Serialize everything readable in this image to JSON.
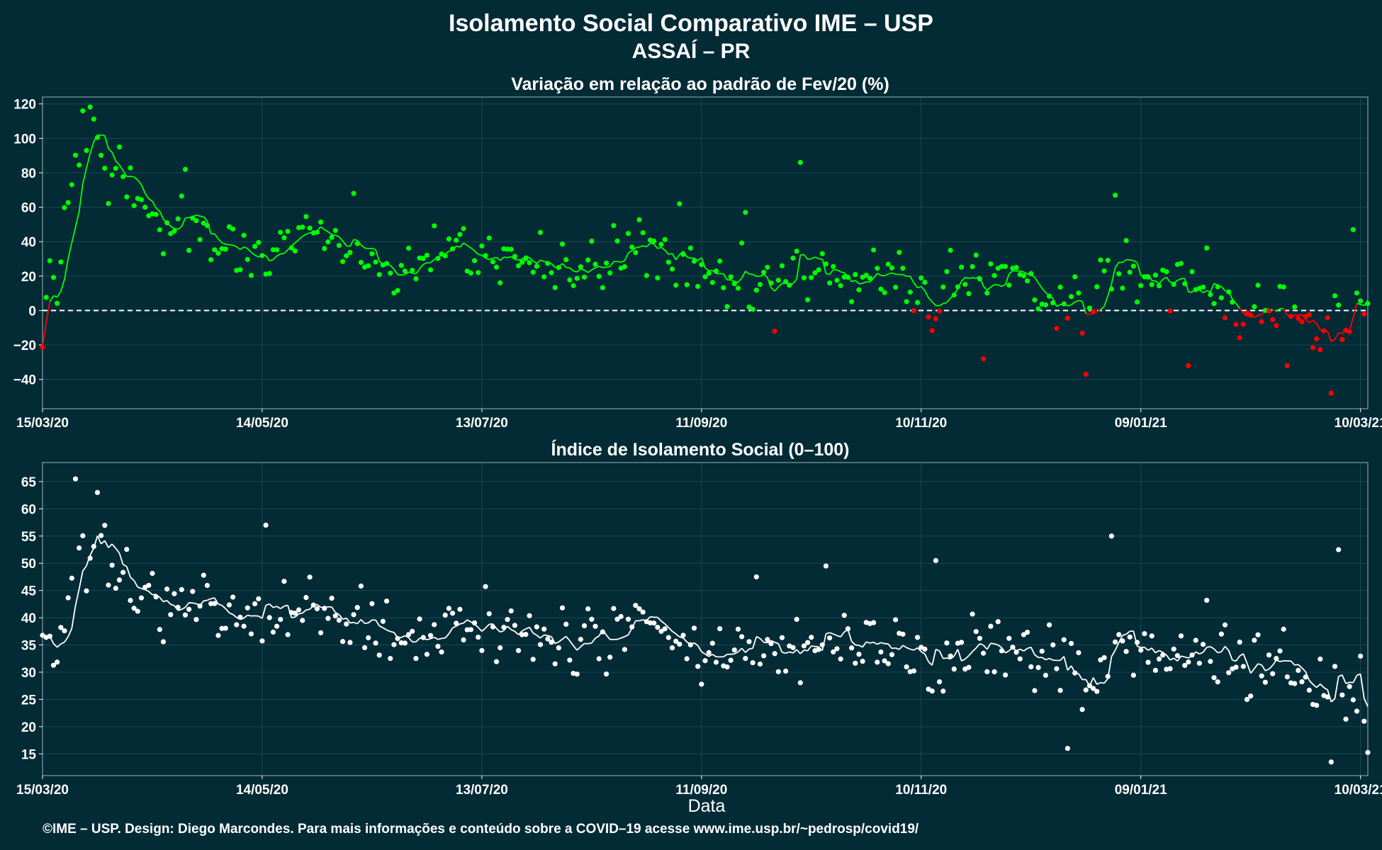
{
  "header": {
    "title": "Isolamento Social Comparativo IME – USP",
    "subtitle": "ASSAÍ – PR"
  },
  "footer": {
    "xlabel": "Data",
    "credit": "©IME – USP. Design: Diego Marcondes. Para mais informações e conteúdo sobre a COVID–19 acesse www.ime.usp.br/~pedrosp/covid19/"
  },
  "colors": {
    "background": "#022b36",
    "positive": "#00ff00",
    "negative": "#ff0000",
    "index": "#ffffff",
    "axis": "#ffffff",
    "grid": "#1d4650"
  },
  "chart_data": [
    {
      "type": "scatter",
      "title": "Variação em relação ao padrão de Fev/20 (%)",
      "xlabel": "",
      "ylabel": "",
      "x_ticks": [
        "15/03/20",
        "14/05/20",
        "13/07/20",
        "11/09/20",
        "10/11/20",
        "09/01/21",
        "10/03/21"
      ],
      "xlim": [
        "15/03/20",
        "12/03/21"
      ],
      "ylim": [
        -57,
        124
      ],
      "y_ticks": [
        -40,
        -20,
        0,
        20,
        40,
        60,
        80,
        100,
        120
      ],
      "reference_line": 0,
      "grid": true,
      "points_color_rule": "green when value >= 0, red when value < 0",
      "anchors": [
        [
          "15/03/20",
          -7
        ],
        [
          "17/03/20",
          19
        ],
        [
          "19/03/20",
          4
        ],
        [
          "21/03/20",
          50
        ],
        [
          "24/03/20",
          88
        ],
        [
          "26/03/20",
          88
        ],
        [
          "28/03/20",
          116
        ],
        [
          "30/03/20",
          96
        ],
        [
          "01/04/20",
          68
        ],
        [
          "04/04/20",
          77
        ],
        [
          "08/04/20",
          67
        ],
        [
          "12/04/20",
          55
        ],
        [
          "16/04/20",
          46
        ],
        [
          "20/04/20",
          45
        ],
        [
          "25/04/20",
          46
        ],
        [
          "30/04/20",
          35
        ],
        [
          "05/05/20",
          40
        ],
        [
          "10/05/20",
          38
        ],
        [
          "15/05/20",
          34
        ],
        [
          "20/05/20",
          38
        ],
        [
          "25/05/20",
          45
        ],
        [
          "31/05/20",
          40
        ],
        [
          "06/06/20",
          35
        ],
        [
          "12/06/20",
          30
        ],
        [
          "18/06/20",
          22
        ],
        [
          "24/06/20",
          24
        ],
        [
          "30/06/20",
          32
        ],
        [
          "06/07/20",
          33
        ],
        [
          "13/07/20",
          31
        ],
        [
          "20/07/20",
          30
        ],
        [
          "27/07/20",
          28
        ],
        [
          "03/08/20",
          24
        ],
        [
          "10/08/20",
          20
        ],
        [
          "17/08/20",
          28
        ],
        [
          "24/08/20",
          40
        ],
        [
          "31/08/20",
          32
        ],
        [
          "06/09/20",
          22
        ],
        [
          "11/09/20",
          16
        ],
        [
          "18/09/20",
          14
        ],
        [
          "25/09/20",
          12
        ],
        [
          "02/10/20",
          18
        ],
        [
          "09/10/20",
          20
        ],
        [
          "16/10/20",
          26
        ],
        [
          "22/10/20",
          10
        ],
        [
          "29/10/20",
          20
        ],
        [
          "05/11/20",
          18
        ],
        [
          "10/11/20",
          8
        ],
        [
          "14/11/20",
          2
        ],
        [
          "20/11/20",
          22
        ],
        [
          "27/11/20",
          18
        ],
        [
          "04/12/20",
          16
        ],
        [
          "11/12/20",
          10
        ],
        [
          "18/12/20",
          8
        ],
        [
          "25/12/20",
          2
        ],
        [
          "31/12/20",
          18
        ],
        [
          "07/01/21",
          22
        ],
        [
          "14/01/21",
          12
        ],
        [
          "21/01/21",
          22
        ],
        [
          "28/01/21",
          20
        ],
        [
          "04/02/21",
          -2
        ],
        [
          "11/02/21",
          2
        ],
        [
          "18/02/21",
          5
        ],
        [
          "25/02/21",
          -12
        ],
        [
          "03/03/21",
          -5
        ],
        [
          "08/03/21",
          -2
        ],
        [
          "12/03/21",
          17
        ]
      ],
      "outliers": [
        [
          "26/03/20",
          116
        ],
        [
          "05/04/20",
          95
        ],
        [
          "23/04/20",
          82
        ],
        [
          "08/06/20",
          68
        ],
        [
          "08/10/20",
          86
        ],
        [
          "27/11/20",
          -28
        ],
        [
          "02/01/21",
          67
        ],
        [
          "25/12/20",
          -37
        ],
        [
          "02/03/21",
          -48
        ],
        [
          "18/02/21",
          -32
        ],
        [
          "22/01/21",
          -32
        ],
        [
          "23/09/20",
          57
        ],
        [
          "05/09/20",
          62
        ],
        [
          "01/10/20",
          -12
        ],
        [
          "08/03/21",
          47
        ]
      ]
    },
    {
      "type": "scatter",
      "title": "Índice de Isolamento Social (0–100)",
      "xlabel": "Data",
      "ylabel": "",
      "x_ticks": [
        "15/03/20",
        "14/05/20",
        "13/07/20",
        "11/09/20",
        "10/11/20",
        "09/01/21",
        "10/03/21"
      ],
      "xlim": [
        "15/03/20",
        "12/03/21"
      ],
      "ylim": [
        11,
        68.5
      ],
      "y_ticks": [
        15,
        20,
        25,
        30,
        35,
        40,
        45,
        50,
        55,
        60,
        65
      ],
      "grid": true,
      "anchors": [
        [
          "15/03/20",
          39
        ],
        [
          "17/03/20",
          31
        ],
        [
          "20/03/20",
          37
        ],
        [
          "24/03/20",
          47
        ],
        [
          "26/03/20",
          52
        ],
        [
          "28/03/20",
          53
        ],
        [
          "31/03/20",
          51
        ],
        [
          "04/04/20",
          47
        ],
        [
          "08/04/20",
          44
        ],
        [
          "12/04/20",
          43
        ],
        [
          "17/04/20",
          41
        ],
        [
          "22/04/20",
          42
        ],
        [
          "27/04/20",
          41
        ],
        [
          "02/05/20",
          40
        ],
        [
          "08/05/20",
          41
        ],
        [
          "14/05/20",
          39
        ],
        [
          "20/05/20",
          38
        ],
        [
          "26/05/20",
          41
        ],
        [
          "01/06/20",
          40
        ],
        [
          "07/06/20",
          39
        ],
        [
          "13/06/20",
          37
        ],
        [
          "19/06/20",
          35
        ],
        [
          "25/06/20",
          35
        ],
        [
          "01/07/20",
          37
        ],
        [
          "07/07/20",
          38
        ],
        [
          "13/07/20",
          38
        ],
        [
          "19/07/20",
          38
        ],
        [
          "25/07/20",
          37
        ],
        [
          "31/07/20",
          36
        ],
        [
          "06/08/20",
          35
        ],
        [
          "12/08/20",
          35
        ],
        [
          "18/08/20",
          37
        ],
        [
          "24/08/20",
          40
        ],
        [
          "30/08/20",
          38
        ],
        [
          "05/09/20",
          35
        ],
        [
          "11/09/20",
          33
        ],
        [
          "17/09/20",
          32
        ],
        [
          "23/09/20",
          33
        ],
        [
          "29/09/20",
          32
        ],
        [
          "05/10/20",
          34
        ],
        [
          "11/10/20",
          35
        ],
        [
          "17/10/20",
          33
        ],
        [
          "23/10/20",
          33
        ],
        [
          "29/10/20",
          35
        ],
        [
          "04/11/20",
          34
        ],
        [
          "10/11/20",
          32
        ],
        [
          "15/11/20",
          29
        ],
        [
          "21/11/20",
          34
        ],
        [
          "27/11/20",
          35
        ],
        [
          "03/12/20",
          34
        ],
        [
          "09/12/20",
          33
        ],
        [
          "15/12/20",
          32
        ],
        [
          "21/12/20",
          31
        ],
        [
          "27/12/20",
          29
        ],
        [
          "02/01/21",
          33
        ],
        [
          "08/01/21",
          36
        ],
        [
          "14/01/21",
          31
        ],
        [
          "20/01/21",
          34
        ],
        [
          "26/01/21",
          35
        ],
        [
          "01/02/21",
          32
        ],
        [
          "07/02/21",
          29
        ],
        [
          "13/02/21",
          31
        ],
        [
          "19/02/21",
          30
        ],
        [
          "25/02/21",
          26
        ],
        [
          "03/03/21",
          28
        ],
        [
          "08/03/21",
          26
        ],
        [
          "12/03/21",
          22
        ]
      ],
      "outliers": [
        [
          "24/03/20",
          65.5
        ],
        [
          "30/03/20",
          63
        ],
        [
          "15/05/20",
          57
        ],
        [
          "01/01/21",
          55
        ],
        [
          "04/03/21",
          52.5
        ],
        [
          "20/12/20",
          16
        ],
        [
          "02/03/21",
          13.5
        ],
        [
          "14/11/20",
          50.5
        ],
        [
          "15/10/20",
          49.5
        ],
        [
          "26/09/20",
          47.5
        ]
      ]
    }
  ]
}
